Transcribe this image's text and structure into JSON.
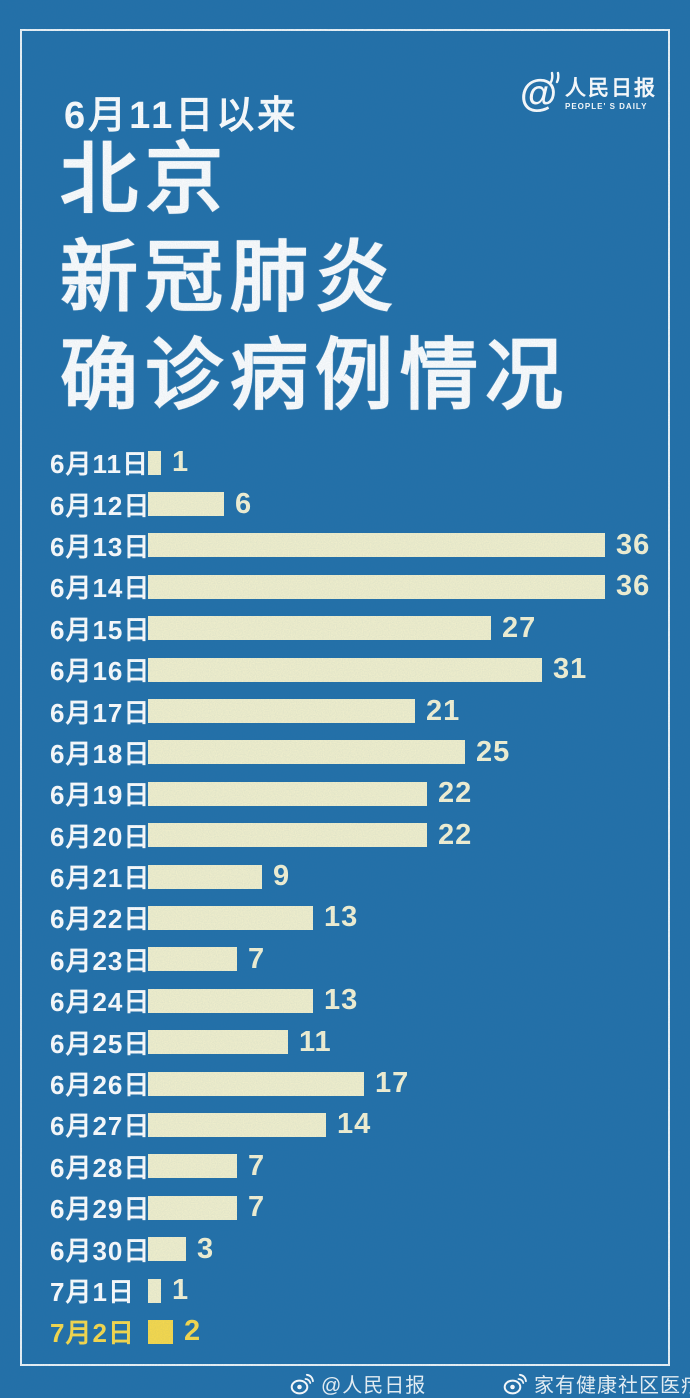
{
  "header": {
    "subtitle": "6月11日以来",
    "logo": {
      "cn": "人民日报",
      "en": "PEOPLE' S DAILY",
      "at_glyph": "@"
    }
  },
  "title": {
    "lines": [
      "北京",
      "新冠肺炎",
      "确诊病例情况"
    ]
  },
  "chart_data": {
    "type": "bar",
    "orientation": "horizontal",
    "title": "6月11日以来北京新冠肺炎确诊病例情况",
    "categories": [
      "6月11日",
      "6月12日",
      "6月13日",
      "6月14日",
      "6月15日",
      "6月16日",
      "6月17日",
      "6月18日",
      "6月19日",
      "6月20日",
      "6月21日",
      "6月22日",
      "6月23日",
      "6月24日",
      "6月25日",
      "6月26日",
      "6月27日",
      "6月28日",
      "6月29日",
      "6月30日",
      "7月1日",
      "7月2日"
    ],
    "values": [
      1,
      6,
      36,
      36,
      27,
      31,
      21,
      25,
      22,
      22,
      9,
      13,
      7,
      13,
      11,
      17,
      14,
      7,
      7,
      3,
      1,
      2
    ],
    "max_value": 36,
    "highlight_index": 21,
    "legend": "none",
    "grid": false,
    "bar_color": "#F4F1CD",
    "highlight_color": "#F9DA4B",
    "category_label_color": "#FFFFFF",
    "value_label_color": "#F6F3D4"
  },
  "footer": {
    "left": "@人民日报",
    "right": "家有健康社区医疗"
  },
  "colors": {
    "background": "#2270A9",
    "frame": "#FFFFFF"
  }
}
